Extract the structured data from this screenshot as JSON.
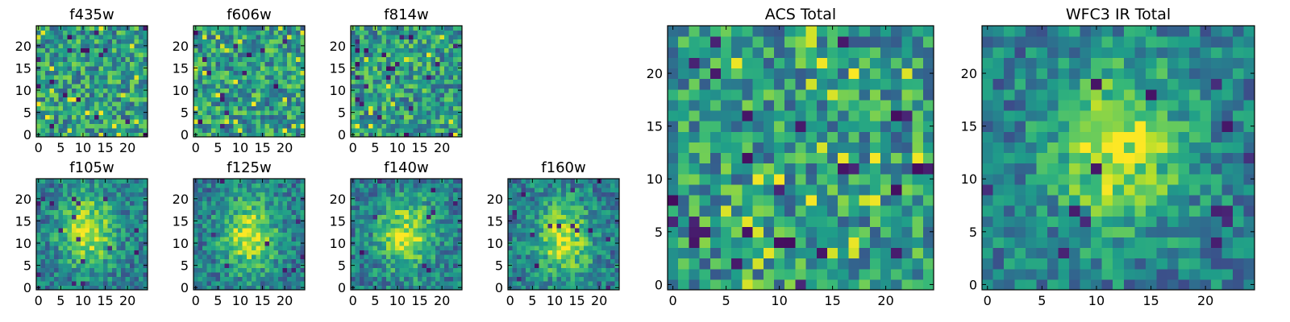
{
  "chart_data": [
    {
      "type": "heatmap",
      "title": "f435w",
      "xticks": [
        0,
        5,
        10,
        15,
        20
      ],
      "yticks": [
        0,
        5,
        10,
        15,
        20
      ],
      "xlim": [
        -0.5,
        24.5
      ],
      "ylim": [
        -0.5,
        24.5
      ],
      "shape": [
        25,
        25
      ],
      "colormap": "viridis",
      "pattern": "noise"
    },
    {
      "type": "heatmap",
      "title": "f606w",
      "xticks": [
        0,
        5,
        10,
        15,
        20
      ],
      "yticks": [
        0,
        5,
        10,
        15,
        20
      ],
      "xlim": [
        -0.5,
        24.5
      ],
      "ylim": [
        -0.5,
        24.5
      ],
      "shape": [
        25,
        25
      ],
      "colormap": "viridis",
      "pattern": "noise"
    },
    {
      "type": "heatmap",
      "title": "f814w",
      "xticks": [
        0,
        5,
        10,
        15,
        20
      ],
      "yticks": [
        0,
        5,
        10,
        15,
        20
      ],
      "xlim": [
        -0.5,
        24.5
      ],
      "ylim": [
        -0.5,
        24.5
      ],
      "shape": [
        25,
        25
      ],
      "colormap": "viridis",
      "pattern": "noise"
    },
    {
      "type": "heatmap",
      "title": "f105w",
      "xticks": [
        0,
        5,
        10,
        15,
        20
      ],
      "yticks": [
        0,
        5,
        10,
        15,
        20
      ],
      "xlim": [
        -0.5,
        24.5
      ],
      "ylim": [
        -0.5,
        24.5
      ],
      "shape": [
        25,
        25
      ],
      "colormap": "viridis",
      "pattern": "source",
      "source_center": [
        11,
        13
      ]
    },
    {
      "type": "heatmap",
      "title": "f125w",
      "xticks": [
        0,
        5,
        10,
        15,
        20
      ],
      "yticks": [
        0,
        5,
        10,
        15,
        20
      ],
      "xlim": [
        -0.5,
        24.5
      ],
      "ylim": [
        -0.5,
        24.5
      ],
      "shape": [
        25,
        25
      ],
      "colormap": "viridis",
      "pattern": "source",
      "source_center": [
        12,
        12
      ]
    },
    {
      "type": "heatmap",
      "title": "f140w",
      "xticks": [
        0,
        5,
        10,
        15,
        20
      ],
      "yticks": [
        0,
        5,
        10,
        15,
        20
      ],
      "xlim": [
        -0.5,
        24.5
      ],
      "ylim": [
        -0.5,
        24.5
      ],
      "shape": [
        25,
        25
      ],
      "colormap": "viridis",
      "pattern": "source",
      "source_center": [
        12,
        12
      ]
    },
    {
      "type": "heatmap",
      "title": "f160w",
      "xticks": [
        0,
        5,
        10,
        15,
        20
      ],
      "yticks": [
        0,
        5,
        10,
        15,
        20
      ],
      "xlim": [
        -0.5,
        24.5
      ],
      "ylim": [
        -0.5,
        24.5
      ],
      "shape": [
        25,
        25
      ],
      "colormap": "viridis",
      "pattern": "source",
      "source_center": [
        12,
        11
      ]
    },
    {
      "type": "heatmap",
      "title": "ACS Total",
      "xticks": [
        0,
        5,
        10,
        15,
        20
      ],
      "yticks": [
        0,
        5,
        10,
        15,
        20
      ],
      "xlim": [
        -0.5,
        24.5
      ],
      "ylim": [
        -0.5,
        24.5
      ],
      "shape": [
        25,
        25
      ],
      "colormap": "viridis",
      "pattern": "noise"
    },
    {
      "type": "heatmap",
      "title": "WFC3 IR Total",
      "xticks": [
        0,
        5,
        10,
        15,
        20
      ],
      "yticks": [
        0,
        5,
        10,
        15,
        20
      ],
      "xlim": [
        -0.5,
        24.5
      ],
      "ylim": [
        -0.5,
        24.5
      ],
      "shape": [
        25,
        25
      ],
      "colormap": "viridis",
      "pattern": "source",
      "source_center": [
        12,
        13
      ]
    }
  ]
}
